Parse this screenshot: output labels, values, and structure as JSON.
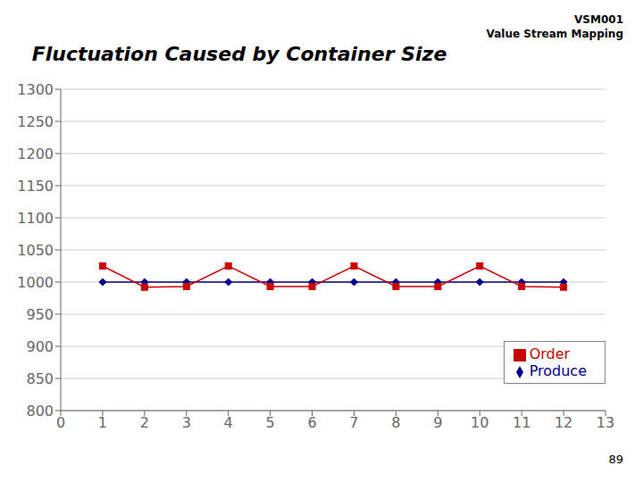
{
  "chart_data": {
    "type": "line",
    "title": "Fluctuation Caused by Container Size",
    "annotations": [
      "VSM001",
      "Value Stream Mapping",
      "89"
    ],
    "x": [
      1,
      2,
      3,
      4,
      5,
      6,
      7,
      8,
      9,
      10,
      11,
      12
    ],
    "series": [
      {
        "name": "Produce",
        "color": "#00008B",
        "marker": "diamond",
        "line_style": "solid",
        "values": [
          1000,
          1000,
          1000,
          1000,
          1000,
          1000,
          1000,
          1000,
          1000,
          1000,
          1000,
          1000
        ]
      },
      {
        "name": "Order",
        "color": "#CC0000",
        "marker": "square",
        "line_style": "solid",
        "values": [
          1025,
          992,
          993,
          1025,
          993,
          993,
          1025,
          993,
          993,
          1025,
          993,
          992
        ]
      }
    ],
    "xlim": [
      0,
      13
    ],
    "xticks": [
      0,
      1,
      2,
      3,
      4,
      5,
      6,
      7,
      8,
      9,
      10,
      11,
      12,
      13
    ],
    "ylim": [
      800,
      1300
    ],
    "yticks": [
      800,
      850,
      900,
      950,
      1000,
      1050,
      1100,
      1150,
      1200,
      1250,
      1300
    ],
    "grid": "y",
    "legend": "lower right"
  }
}
